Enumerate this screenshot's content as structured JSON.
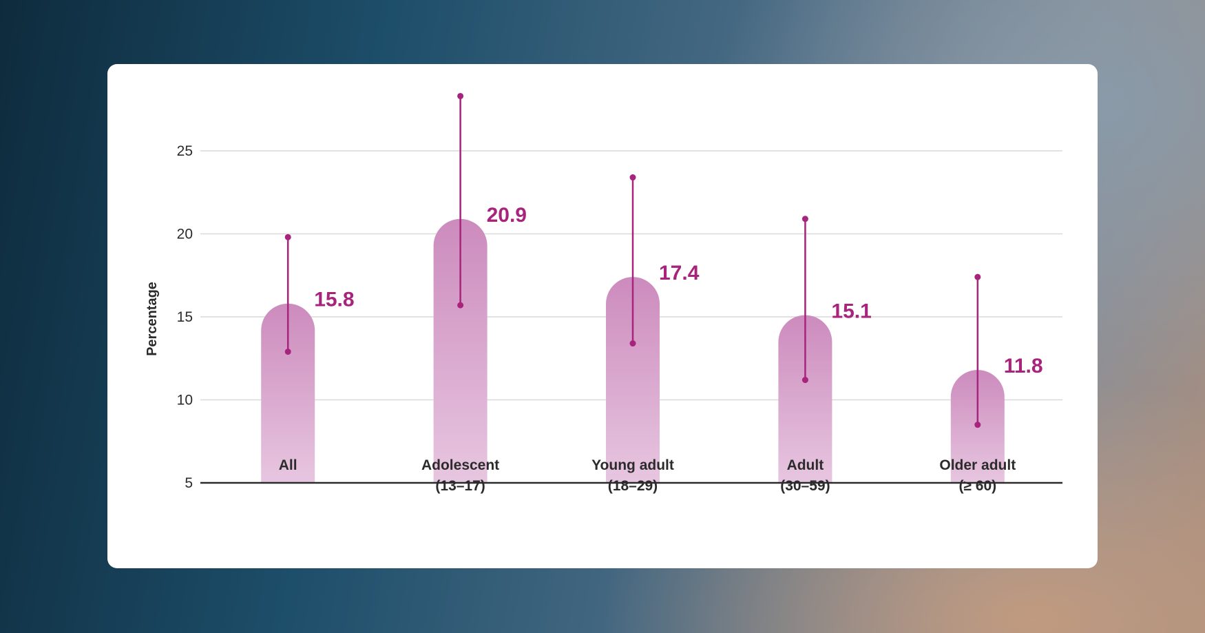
{
  "chart_data": {
    "type": "bar",
    "title": "",
    "xlabel": "",
    "ylabel": "Percentage",
    "ylim": [
      5,
      28
    ],
    "yticks": [
      5,
      10,
      15,
      20,
      25
    ],
    "grid": true,
    "categories": [
      {
        "line1": "All",
        "line2": ""
      },
      {
        "line1": "Adolescent",
        "line2": "(13–17)"
      },
      {
        "line1": "Young adult",
        "line2": "(18–29)"
      },
      {
        "line1": "Adult",
        "line2": "(30–59)"
      },
      {
        "line1": "Older adult",
        "line2": "(≥ 60)"
      }
    ],
    "values": [
      15.8,
      20.9,
      17.4,
      15.1,
      11.8
    ],
    "value_labels": [
      "15.8",
      "20.9",
      "17.4",
      "15.1",
      "11.8"
    ],
    "error_low": [
      12.9,
      15.7,
      13.4,
      11.2,
      8.5
    ],
    "error_high": [
      19.8,
      28.3,
      23.4,
      20.9,
      17.4
    ],
    "colors": {
      "bar_top": "#cc8bbd",
      "bar_bottom": "#e7c6e0",
      "error_bar": "#a8237c",
      "value_label": "#a8237c",
      "gridline": "#d9d9d9",
      "axis": "#2b2b2b"
    }
  }
}
